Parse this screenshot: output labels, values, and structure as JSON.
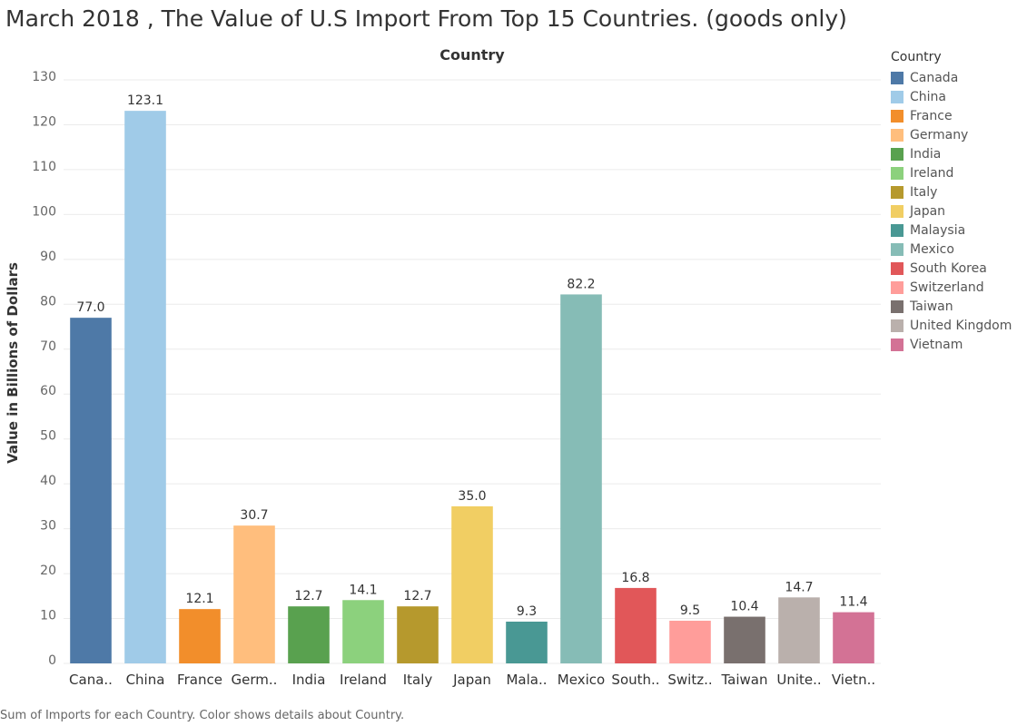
{
  "chart_data": {
    "type": "bar",
    "title": "March 2018 , The Value of U.S Import From Top 15 Countries. (goods only)",
    "column_header": "Country",
    "ylabel": "Value in Billions of Dollars",
    "ylim": [
      0,
      130
    ],
    "yticks": [
      0,
      10,
      20,
      30,
      40,
      50,
      60,
      70,
      80,
      90,
      100,
      110,
      120,
      130
    ],
    "grid": true,
    "categories": [
      "Canada",
      "China",
      "France",
      "Germany",
      "India",
      "Ireland",
      "Italy",
      "Japan",
      "Malaysia",
      "Mexico",
      "South Korea",
      "Switzerland",
      "Taiwan",
      "United Kingdom",
      "Vietnam"
    ],
    "tick_labels": [
      "Cana..",
      "China",
      "France",
      "Germ..",
      "India",
      "Ireland",
      "Italy",
      "Japan",
      "Mala..",
      "Mexico",
      "South..",
      "Switz..",
      "Taiwan",
      "Unite..",
      "Vietn.."
    ],
    "values": [
      77.0,
      123.1,
      12.1,
      30.7,
      12.7,
      14.1,
      12.7,
      35.0,
      9.3,
      82.2,
      16.8,
      9.5,
      10.4,
      14.7,
      11.4
    ],
    "value_labels": [
      "77.0",
      "123.1",
      "12.1",
      "30.7",
      "12.7",
      "14.1",
      "12.7",
      "35.0",
      "9.3",
      "82.2",
      "16.8",
      "9.5",
      "10.4",
      "14.7",
      "11.4"
    ],
    "colors": [
      "#4e79a7",
      "#a0cbe8",
      "#f28e2b",
      "#ffbe7d",
      "#59a14f",
      "#8cd17d",
      "#b6992d",
      "#f1ce63",
      "#499894",
      "#86bcb6",
      "#e15759",
      "#ff9d9a",
      "#79706e",
      "#bab0ac",
      "#d37295"
    ],
    "legend": {
      "title": "Country",
      "placement": "right",
      "entries": [
        "Canada",
        "China",
        "France",
        "Germany",
        "India",
        "Ireland",
        "Italy",
        "Japan",
        "Malaysia",
        "Mexico",
        "South Korea",
        "Switzerland",
        "Taiwan",
        "United Kingdom",
        "Vietnam"
      ]
    },
    "footer": "Sum of Imports for each Country.  Color shows details about Country."
  }
}
